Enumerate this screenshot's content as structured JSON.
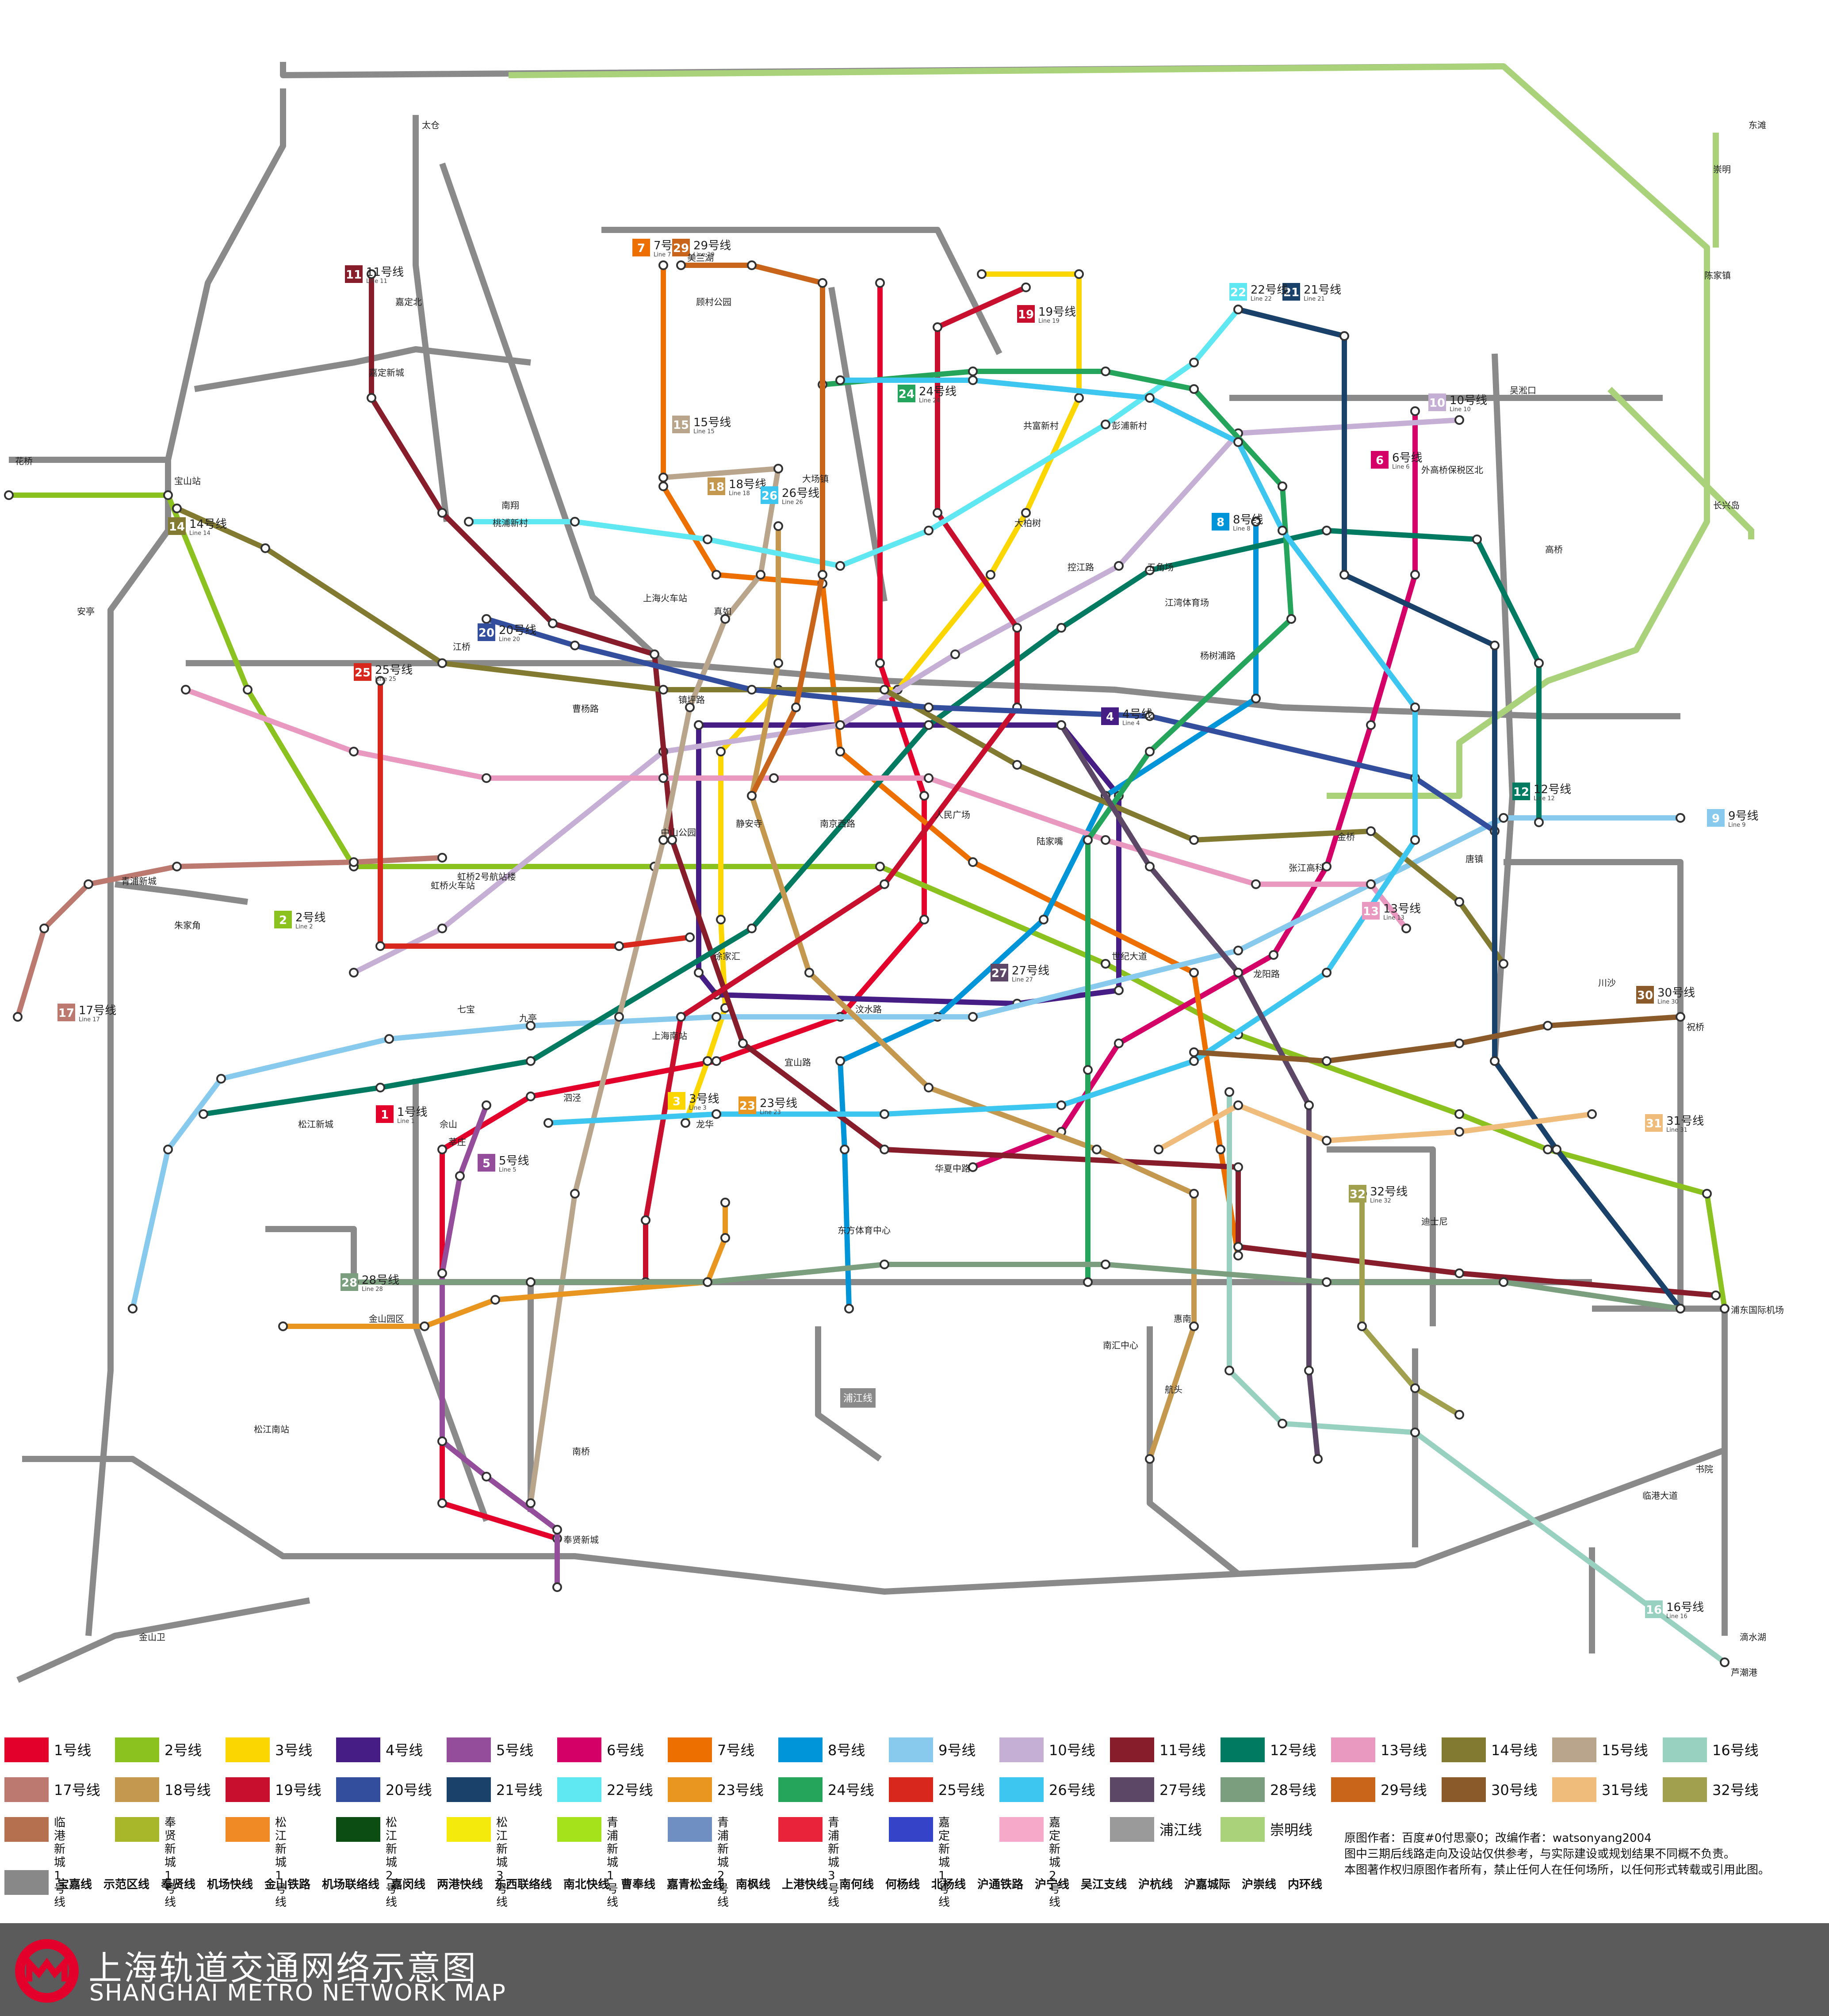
{
  "map": {
    "background": "#ffffff",
    "district_label": "浦江线",
    "lines": [
      {
        "id": "1",
        "name": "1号线",
        "en": "Line 1",
        "color": "#e3002b"
      },
      {
        "id": "2",
        "name": "2号线",
        "en": "Line 2",
        "color": "#8cc220"
      },
      {
        "id": "3",
        "name": "3号线",
        "en": "Line 3",
        "color": "#fcd600"
      },
      {
        "id": "4",
        "name": "4号线",
        "en": "Line 4",
        "color": "#461d84"
      },
      {
        "id": "5",
        "name": "5号线",
        "en": "Line 5",
        "color": "#944d9a"
      },
      {
        "id": "6",
        "name": "6号线",
        "en": "Line 6",
        "color": "#d40068"
      },
      {
        "id": "7",
        "name": "7号线",
        "en": "Line 7",
        "color": "#ed6f00"
      },
      {
        "id": "8",
        "name": "8号线",
        "en": "Line 8",
        "color": "#0094d8"
      },
      {
        "id": "9",
        "name": "9号线",
        "en": "Line 9",
        "color": "#87caed"
      },
      {
        "id": "10",
        "name": "10号线",
        "en": "Line 10",
        "color": "#c6afd4"
      },
      {
        "id": "11",
        "name": "11号线",
        "en": "Line 11",
        "color": "#871c2b"
      },
      {
        "id": "12",
        "name": "12号线",
        "en": "Line 12",
        "color": "#007a60"
      },
      {
        "id": "13",
        "name": "13号线",
        "en": "Line 13",
        "color": "#e999c0"
      },
      {
        "id": "14",
        "name": "14号线",
        "en": "Line 14",
        "color": "#827a31"
      },
      {
        "id": "15",
        "name": "15号线",
        "en": "Line 15",
        "color": "#b9a58c"
      },
      {
        "id": "16",
        "name": "16号线",
        "en": "Line 16",
        "color": "#98d1c0"
      },
      {
        "id": "17",
        "name": "17号线",
        "en": "Line 17",
        "color": "#bc796f"
      },
      {
        "id": "18",
        "name": "18号线",
        "en": "Line 18",
        "color": "#c4984f"
      },
      {
        "id": "19",
        "name": "19号线",
        "en": "Line 19",
        "color": "#c8102e"
      },
      {
        "id": "20",
        "name": "20号线",
        "en": "Line 20",
        "color": "#344e9e"
      },
      {
        "id": "21",
        "name": "21号线",
        "en": "Line 21",
        "color": "#19416a"
      },
      {
        "id": "22",
        "name": "22号线",
        "en": "Line 22",
        "color": "#5fe8f2"
      },
      {
        "id": "23",
        "name": "23号线",
        "en": "Line 23",
        "color": "#e99620"
      },
      {
        "id": "24",
        "name": "24号线",
        "en": "Line 24",
        "color": "#24a55b"
      },
      {
        "id": "25",
        "name": "25号线",
        "en": "Line 25",
        "color": "#d8281e"
      },
      {
        "id": "26",
        "name": "26号线",
        "en": "Line 26",
        "color": "#3cc6f0"
      },
      {
        "id": "27",
        "name": "27号线",
        "en": "Line 27",
        "color": "#5c4767"
      },
      {
        "id": "28",
        "name": "28号线",
        "en": "Line 28",
        "color": "#7a9e7e"
      },
      {
        "id": "29",
        "name": "29号线",
        "en": "Line 29",
        "color": "#c8651b"
      },
      {
        "id": "30",
        "name": "30号线",
        "en": "Line 30",
        "color": "#8b5a2b"
      },
      {
        "id": "31",
        "name": "31号线",
        "en": "Line 31",
        "color": "#efbc7c"
      },
      {
        "id": "32",
        "name": "32号线",
        "en": "Line 32",
        "color": "#a0a04e"
      }
    ],
    "line_badges": [
      {
        "line": "1",
        "label": "1号线",
        "en": "Line 1"
      },
      {
        "line": "2",
        "label": "2号线",
        "en": "Line 2"
      },
      {
        "line": "3",
        "label": "3号线",
        "en": "Line 3"
      },
      {
        "line": "4",
        "label": "4号线",
        "en": "Line 4"
      },
      {
        "line": "5",
        "label": "5号线",
        "en": "Line 5"
      },
      {
        "line": "6",
        "label": "6号线",
        "en": "Line 6"
      },
      {
        "line": "7",
        "label": "7号线",
        "en": "Line 7"
      },
      {
        "line": "8",
        "label": "8号线",
        "en": "Line 8"
      },
      {
        "line": "9",
        "label": "9号线",
        "en": "Line 9"
      },
      {
        "line": "10",
        "label": "10号线",
        "en": "Line 10"
      },
      {
        "line": "11",
        "label": "11号线",
        "en": "Line 11"
      },
      {
        "line": "12",
        "label": "12号线",
        "en": "Line 12"
      },
      {
        "line": "13",
        "label": "13号线",
        "en": "Line 13"
      },
      {
        "line": "14",
        "label": "14号线",
        "en": "Line 14"
      },
      {
        "line": "15",
        "label": "15号线",
        "en": "Line 15"
      },
      {
        "line": "16",
        "label": "16号线",
        "en": "Line 16"
      },
      {
        "line": "17",
        "label": "17号线",
        "en": "Line 17"
      },
      {
        "line": "18",
        "label": "18号线",
        "en": "Line 18"
      },
      {
        "line": "19",
        "label": "19号线",
        "en": "Line 19"
      },
      {
        "line": "20",
        "label": "20号线",
        "en": "Line 20"
      },
      {
        "line": "21",
        "label": "21号线",
        "en": "Line 21"
      },
      {
        "line": "22",
        "label": "22号线",
        "en": "Line 22"
      },
      {
        "line": "23",
        "label": "23号线",
        "en": "Line 23"
      },
      {
        "line": "24",
        "label": "24号线",
        "en": "Line 24"
      },
      {
        "line": "25",
        "label": "25号线",
        "en": "Line 25"
      },
      {
        "line": "26",
        "label": "26号线",
        "en": "Line 26"
      },
      {
        "line": "27",
        "label": "27号线",
        "en": "Line 27"
      },
      {
        "line": "28",
        "label": "28号线",
        "en": "Line 28"
      },
      {
        "line": "29",
        "label": "29号线",
        "en": "Line 29"
      },
      {
        "line": "30",
        "label": "30号线",
        "en": "Line 30"
      },
      {
        "line": "31",
        "label": "31号线",
        "en": "Line 31"
      },
      {
        "line": "32",
        "label": "32号线",
        "en": "Line 32"
      }
    ],
    "stations": [
      "宝山站",
      "上海火车站",
      "上海南站",
      "人民广场",
      "世纪大道",
      "徐家汇",
      "陆家嘴",
      "龙阳路",
      "虹桥火车站",
      "浦东国际机场",
      "中山公园",
      "静安寺",
      "南京西路",
      "虹桥2号航站楼",
      "迪士尼",
      "莘庄",
      "松江南站",
      "安亭",
      "金山卫",
      "临港大道",
      "滴水湖",
      "花桥",
      "太仓",
      "长兴岛",
      "崇明",
      "东滩",
      "陈家镇",
      "外高桥保税区北",
      "五角场",
      "江湾体育场",
      "曹杨路",
      "镇坪路",
      "宜山路",
      "龙华",
      "东方体育中心",
      "航头",
      "惠南",
      "南汇中心",
      "书院",
      "芦潮港",
      "奉贤新城",
      "南桥",
      "金山园区",
      "青浦新城",
      "朱家角",
      "嘉定北",
      "嘉定新城",
      "南翔",
      "江桥",
      "七宝",
      "九亭",
      "泗泾",
      "佘山",
      "松江新城",
      "华夏中路",
      "张江高科",
      "唐镇",
      "川沙",
      "祝桥",
      "金桥",
      "高桥",
      "吴淞口",
      "美兰湖",
      "顾村公园",
      "共富新村",
      "彭浦新村",
      "大场镇",
      "真如",
      "桃浦新村",
      "汶水路",
      "大柏树",
      "控江路",
      "杨树浦路"
    ]
  },
  "legend": {
    "items": [
      {
        "label": "1号线",
        "color": "#e3002b"
      },
      {
        "label": "2号线",
        "color": "#8cc220"
      },
      {
        "label": "3号线",
        "color": "#fcd600"
      },
      {
        "label": "4号线",
        "color": "#461d84"
      },
      {
        "label": "5号线",
        "color": "#944d9a"
      },
      {
        "label": "6号线",
        "color": "#d40068"
      },
      {
        "label": "7号线",
        "color": "#ed6f00"
      },
      {
        "label": "8号线",
        "color": "#0094d8"
      },
      {
        "label": "9号线",
        "color": "#87caed"
      },
      {
        "label": "10号线",
        "color": "#c6afd4"
      },
      {
        "label": "11号线",
        "color": "#871c2b"
      },
      {
        "label": "12号线",
        "color": "#007a60"
      },
      {
        "label": "13号线",
        "color": "#e999c0"
      },
      {
        "label": "14号线",
        "color": "#827a31"
      },
      {
        "label": "15号线",
        "color": "#b9a58c"
      },
      {
        "label": "16号线",
        "color": "#98d1c0"
      },
      {
        "label": "17号线",
        "color": "#bc796f"
      },
      {
        "label": "18号线",
        "color": "#c4984f"
      },
      {
        "label": "19号线",
        "color": "#c8102e"
      },
      {
        "label": "20号线",
        "color": "#344e9e"
      },
      {
        "label": "21号线",
        "color": "#19416a"
      },
      {
        "label": "22号线",
        "color": "#5fe8f2"
      },
      {
        "label": "23号线",
        "color": "#e99620"
      },
      {
        "label": "24号线",
        "color": "#24a55b"
      },
      {
        "label": "25号线",
        "color": "#d8281e"
      },
      {
        "label": "26号线",
        "color": "#3cc6f0"
      },
      {
        "label": "27号线",
        "color": "#5c4767"
      },
      {
        "label": "28号线",
        "color": "#7a9e7e"
      },
      {
        "label": "29号线",
        "color": "#c8651b"
      },
      {
        "label": "30号线",
        "color": "#8b5a2b"
      },
      {
        "label": "31号线",
        "color": "#efbc7c"
      },
      {
        "label": "32号线",
        "color": "#a0a04e"
      },
      {
        "label": "临港新城\n1号线",
        "color": "#b5704f"
      },
      {
        "label": "奉贤新城\n1号线",
        "color": "#a8b62a"
      },
      {
        "label": "松江新城\n1号线",
        "color": "#f08a24"
      },
      {
        "label": "松江新城\n2号线",
        "color": "#0b4d12"
      },
      {
        "label": "松江新城\n3号线",
        "color": "#f4ea0c"
      },
      {
        "label": "青浦新城\n1号线",
        "color": "#a6e21c"
      },
      {
        "label": "青浦新城\n2号线",
        "color": "#6f8fc2"
      },
      {
        "label": "青浦新城\n3号线",
        "color": "#e8233a"
      },
      {
        "label": "嘉定新城\n1号线",
        "color": "#3543c8"
      },
      {
        "label": "嘉定新城\n2号线",
        "color": "#f6a9c8"
      },
      {
        "label": "浦江线",
        "color": "#9a9a9a"
      },
      {
        "label": "崇明线",
        "color": "#a9d27a"
      }
    ],
    "rail_color": "#888888",
    "rail_names": [
      "宝嘉线",
      "示范区线",
      "奉贤线",
      "机场快线",
      "金山铁路",
      "机场联络线",
      "嘉闵线",
      "两港快线",
      "东西联络线",
      "南北快线",
      "曹奉线",
      "嘉青松金线",
      "南枫线",
      "上港快线",
      "南何线",
      "何杨线",
      "北杨线",
      "沪通铁路",
      "沪宁线",
      "吴江支线",
      "沪杭线",
      "沪嘉城际",
      "沪崇线",
      "内环线"
    ]
  },
  "credits": {
    "line1": "原图作者：百度#0付思豪0；改编作者：watsonyang2004",
    "line2": "图中三期后线路走向及设站仅供参考，与实际建设或规划结果不同概不负责。",
    "line3": "本图著作权归原图作者所有，禁止任何人在任何场所，以任何形式转载或引用此图。"
  },
  "footer": {
    "title_cn": "上海轨道交通网络示意图",
    "title_en": "SHANGHAI METRO NETWORK MAP",
    "logo_color": "#e3002b",
    "background": "#5b5b5b"
  }
}
